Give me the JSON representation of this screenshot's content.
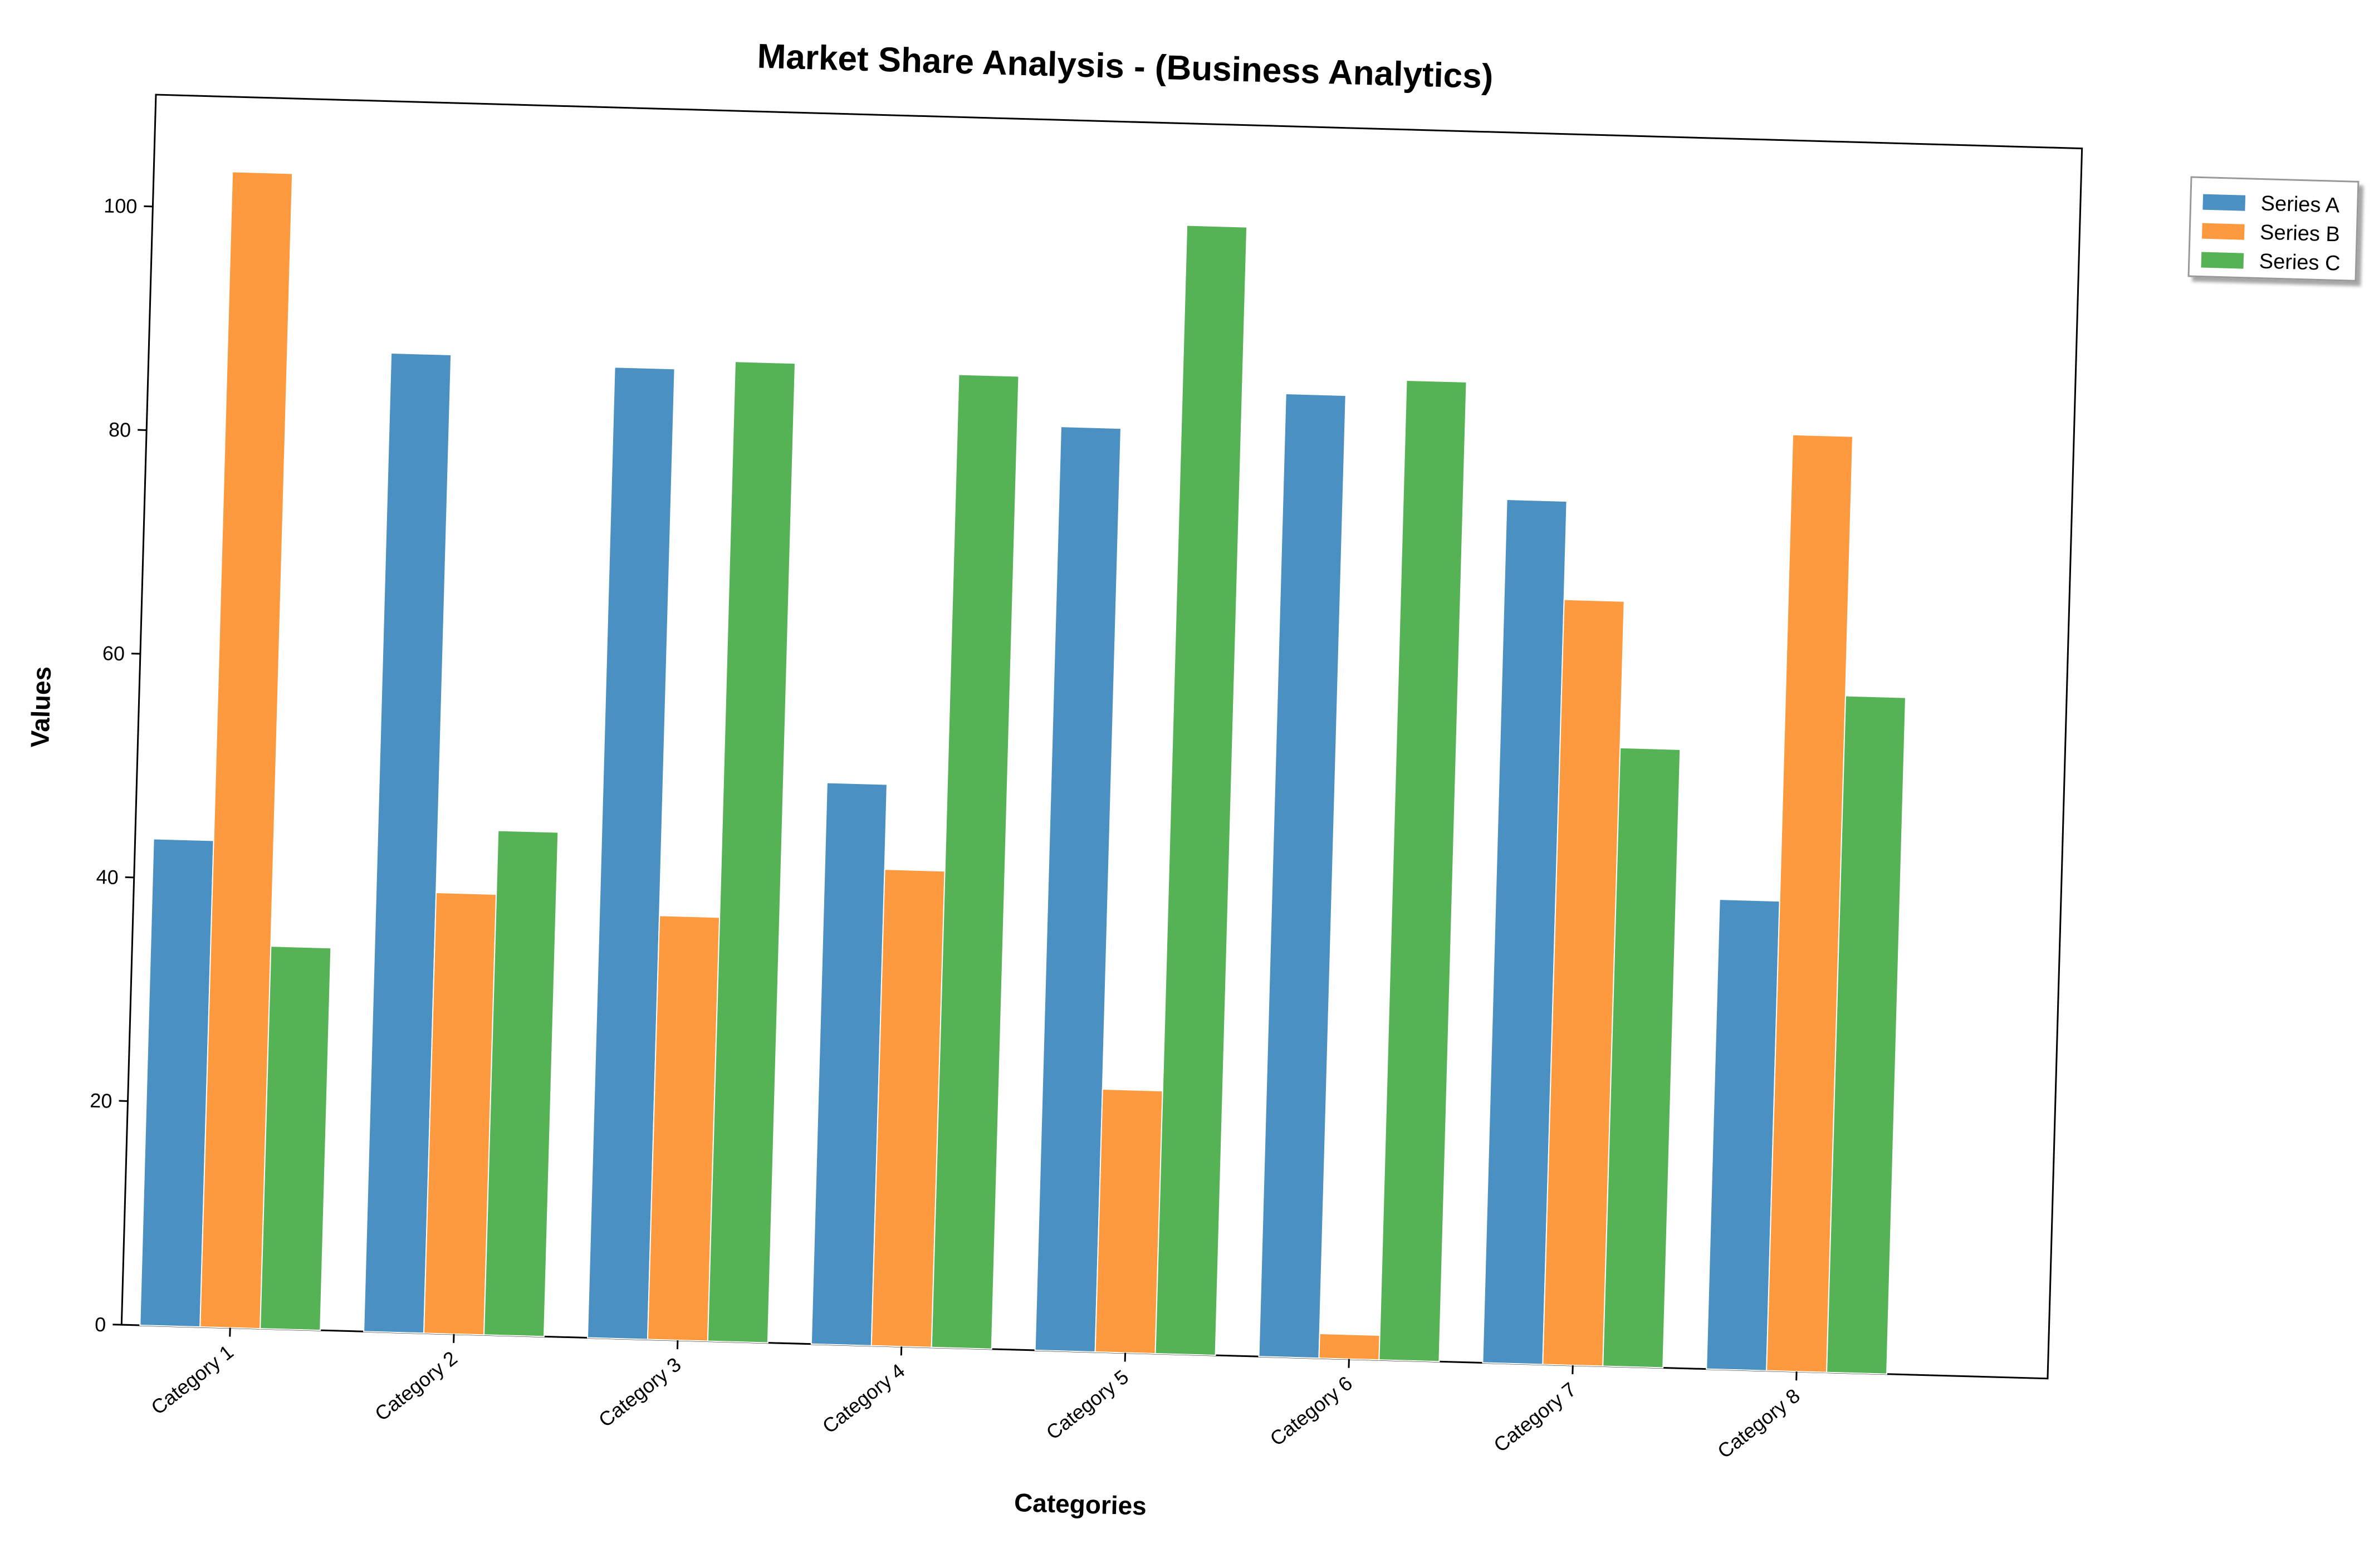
{
  "chart_data": {
    "type": "bar",
    "title": "Market Share Analysis - (Business Analytics)",
    "xlabel": "Categories",
    "ylabel": "Values",
    "categories": [
      "Category 1",
      "Category 2",
      "Category 3",
      "Category 4",
      "Category 5",
      "Category 6",
      "Category 7",
      "Category 8"
    ],
    "series": [
      {
        "name": "Series A",
        "color": "#4a90c2",
        "values": [
          43.5,
          87.5,
          86.8,
          50.2,
          82.6,
          86.1,
          77.2,
          42.0
        ]
      },
      {
        "name": "Series B",
        "color": "#fd9a3f",
        "values": [
          103.3,
          39.4,
          37.9,
          42.6,
          23.5,
          2.2,
          68.4,
          83.7
        ]
      },
      {
        "name": "Series C",
        "color": "#55b355",
        "values": [
          34.2,
          45.1,
          87.6,
          87.0,
          100.9,
          87.6,
          55.3,
          60.5
        ]
      }
    ],
    "ylim": [
      0,
      110
    ],
    "yticks": [
      0,
      20,
      40,
      60,
      80,
      100
    ],
    "grid": false,
    "legend_position": "outside top-right"
  }
}
